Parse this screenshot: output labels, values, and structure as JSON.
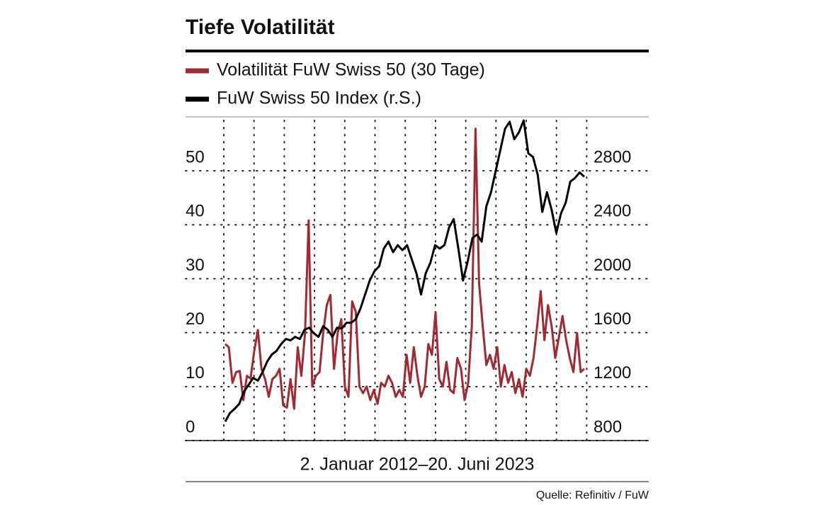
{
  "chart_data": {
    "type": "line",
    "title": "Tiefe Volatilität",
    "subtitle": "2. Januar 2012–20. Juni 2023",
    "source": "Quelle: Refinitiv / FuW",
    "ylim": [
      0,
      60
    ],
    "yticks": [
      0,
      10,
      20,
      30,
      40,
      50
    ],
    "y2lim": [
      800,
      3200
    ],
    "y2ticks": [
      800,
      1200,
      1600,
      2000,
      2400,
      2800
    ],
    "grid": true,
    "series": [
      {
        "name": "Volatilität FuW Swiss 50 (30 Tage)",
        "color": "#a3282f",
        "values": [
          17.9,
          17.3,
          10.7,
          12.7,
          12.9,
          7.5,
          12,
          11.5,
          16.6,
          20.5,
          13.3,
          11.4,
          8.1,
          11.4,
          12,
          13.3,
          6.5,
          6.1,
          11.4,
          5.9,
          17.3,
          12,
          19.9,
          40.8,
          10,
          12,
          12.7,
          19.9,
          25.1,
          27,
          13.3,
          19.9,
          22.5,
          10,
          8.1,
          25.8,
          23.8,
          10,
          8.8,
          10,
          7.5,
          9.4,
          6.8,
          10.7,
          10,
          12,
          10.7,
          8.1,
          9.4,
          8.1,
          15.9,
          10.7,
          17.3,
          12,
          8.1,
          10,
          17.9,
          15.9,
          23.8,
          11.4,
          10,
          14.6,
          9.4,
          8.8,
          15.3,
          13.3,
          7.5,
          10.7,
          21.2,
          57.8,
          29,
          21.2,
          14,
          15.9,
          13.3,
          17.3,
          10,
          14,
          10.7,
          12.7,
          8.8,
          11.4,
          8.1,
          13.3,
          12,
          15.3,
          21.2,
          27.7,
          18.6,
          25.1,
          21.2,
          15.3,
          19.2,
          23.1,
          18.6,
          15.3,
          12.7,
          19.9,
          12.7,
          13.3
        ]
      },
      {
        "name": "FuW Swiss 50 Index (r.S.)",
        "color": "#000000",
        "axis": "y2",
        "values": [
          941,
          1004,
          1035,
          1072,
          1161,
          1213,
          1265,
          1244,
          1307,
          1386,
          1438,
          1464,
          1516,
          1553,
          1543,
          1569,
          1553,
          1621,
          1637,
          1595,
          1569,
          1648,
          1621,
          1569,
          1637,
          1632,
          1673,
          1673,
          1700,
          1778,
          1883,
          1987,
          2055,
          2092,
          2223,
          2275,
          2197,
          2249,
          2212,
          2249,
          2144,
          2040,
          1883,
          2040,
          2118,
          2249,
          2223,
          2249,
          2380,
          2442,
          2223,
          1987,
          2128,
          2301,
          2327,
          2275,
          2536,
          2641,
          2798,
          2955,
          3112,
          3164,
          3034,
          3086,
          3174,
          2929,
          2903,
          2772,
          2495,
          2641,
          2511,
          2338,
          2484,
          2563,
          2720,
          2746,
          2788,
          2756
        ]
      }
    ]
  }
}
